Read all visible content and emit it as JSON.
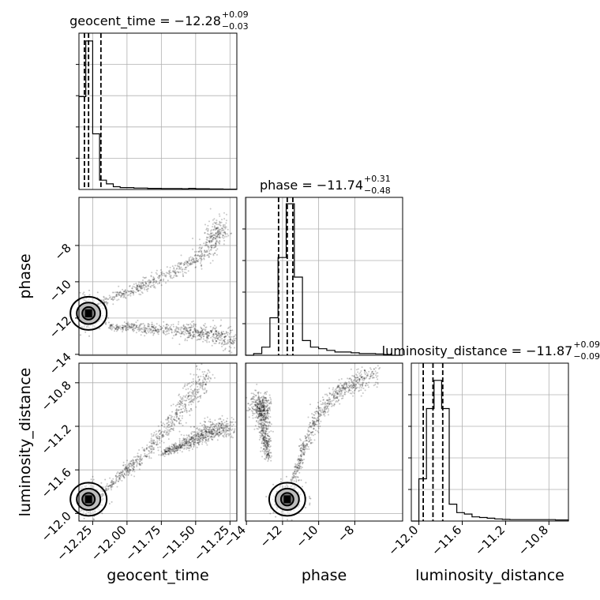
{
  "chart_data": {
    "type": "corner",
    "parameters": [
      "geocent_time",
      "phase",
      "luminosity_distance"
    ],
    "axis_labels": {
      "geocent_time": "geocent_time",
      "phase": "phase",
      "luminosity_distance": "luminosity_distance"
    },
    "titles": {
      "geocent_time": {
        "name": "geocent_time",
        "median": "−12.28",
        "plus": "+0.09",
        "minus": "−0.03"
      },
      "phase": {
        "name": "phase",
        "median": "−11.74",
        "plus": "+0.31",
        "minus": "−0.48"
      },
      "luminosity_distance": {
        "name": "luminosity_distance",
        "median": "−11.87",
        "plus": "+0.09",
        "minus": "−0.09"
      }
    },
    "ranges": {
      "geocent_time": [
        -12.35,
        -11.2
      ],
      "phase": [
        -14.05,
        -5.35
      ],
      "luminosity_distance": [
        -12.07,
        -10.62
      ]
    },
    "ticks": {
      "geocent_time": [
        -12.25,
        -12.0,
        -11.75,
        -11.5,
        -11.25
      ],
      "phase": [
        -14,
        -12,
        -10,
        -8
      ],
      "luminosity_distance": [
        -12.0,
        -11.6,
        -11.2,
        -10.8
      ]
    },
    "tick_labels": {
      "geocent_time": [
        "−12.25",
        "−12.00",
        "−11.75",
        "−11.50",
        "−11.25"
      ],
      "phase": [
        "−14",
        "−12",
        "−10",
        "−8"
      ],
      "luminosity_distance": [
        "−12.0",
        "−11.6",
        "−11.2",
        "−10.8"
      ]
    },
    "quantiles": {
      "geocent_time": [
        -12.31,
        -12.28,
        -12.19
      ],
      "phase": [
        -12.22,
        -11.74,
        -11.43
      ],
      "luminosity_distance": [
        -11.96,
        -11.87,
        -11.78
      ]
    },
    "histograms": {
      "geocent_time": {
        "edges": [
          -12.35,
          -12.3,
          -12.25,
          -12.2,
          -12.15,
          -12.1,
          -12.05,
          -12.0,
          -11.95,
          -11.9,
          -11.85,
          -11.8,
          -11.75,
          -11.7,
          -11.65,
          -11.6,
          -11.55,
          -11.5,
          -11.45,
          -11.4,
          -11.35,
          -11.3,
          -11.25,
          -11.2
        ],
        "counts": [
          1.0,
          1.6,
          0.6,
          0.1,
          0.06,
          0.03,
          0.02,
          0.02,
          0.015,
          0.015,
          0.012,
          0.012,
          0.01,
          0.01,
          0.01,
          0.008,
          0.012,
          0.008,
          0.008,
          0.005,
          0.005,
          0.003,
          0.003
        ],
        "ymax": 1.65
      },
      "phase": {
        "edges": [
          -14.05,
          -13.6,
          -13.15,
          -12.7,
          -12.25,
          -11.8,
          -11.35,
          -10.9,
          -10.45,
          -10.0,
          -9.55,
          -9.1,
          -8.65,
          -8.2,
          -7.75,
          -7.3,
          -6.85,
          -6.4,
          -5.95,
          -5.35
        ],
        "counts": [
          0.0,
          0.01,
          0.05,
          0.23,
          0.6,
          0.93,
          0.48,
          0.09,
          0.05,
          0.04,
          0.03,
          0.02,
          0.02,
          0.015,
          0.01,
          0.01,
          0.008,
          0.005,
          0.0
        ],
        "ymax": 0.95
      },
      "luminosity_distance": {
        "edges": [
          -12.07,
          -12.0,
          -11.93,
          -11.86,
          -11.79,
          -11.72,
          -11.65,
          -11.58,
          -11.51,
          -11.44,
          -11.37,
          -11.3,
          -11.23,
          -11.16,
          -11.09,
          -11.02,
          -10.95,
          -10.88,
          -10.81,
          -10.74,
          -10.62
        ],
        "counts": [
          0.0,
          0.3,
          0.8,
          1.0,
          0.8,
          0.12,
          0.06,
          0.05,
          0.03,
          0.025,
          0.02,
          0.015,
          0.012,
          0.01,
          0.01,
          0.01,
          0.01,
          0.01,
          0.01,
          0.008
        ],
        "ymax": 1.1
      }
    },
    "scatter_features": {
      "geocent_time_vs_phase": {
        "upper_branch": [
          [
            -12.2,
            -11.2
          ],
          [
            -12.0,
            -10.6
          ],
          [
            -11.75,
            -9.8
          ],
          [
            -11.5,
            -8.8
          ],
          [
            -11.35,
            -7.6
          ],
          [
            -11.33,
            -6.8
          ]
        ],
        "lower_branch": [
          [
            -12.15,
            -12.45
          ],
          [
            -11.9,
            -12.55
          ],
          [
            -11.6,
            -12.7
          ],
          [
            -11.4,
            -12.9
          ],
          [
            -11.2,
            -13.2
          ]
        ],
        "mode": [
          -12.28,
          -11.74
        ]
      },
      "geocent_time_vs_luminosity_distance": {
        "main_branch": [
          [
            -12.2,
            -11.85
          ],
          [
            -12.05,
            -11.65
          ],
          [
            -11.9,
            -11.5
          ],
          [
            -11.7,
            -11.2
          ],
          [
            -11.55,
            -10.95
          ],
          [
            -11.42,
            -10.72
          ]
        ],
        "secondary_branch": [
          [
            -11.75,
            -11.45
          ],
          [
            -11.55,
            -11.35
          ],
          [
            -11.4,
            -11.25
          ],
          [
            -11.25,
            -11.2
          ]
        ],
        "mode": [
          -12.28,
          -11.87
        ]
      },
      "phase_vs_luminosity_distance": {
        "left_branch": [
          [
            -12.8,
            -11.5
          ],
          [
            -13.1,
            -11.1
          ],
          [
            -13.3,
            -10.95
          ]
        ],
        "right_branch": [
          [
            -11.4,
            -11.7
          ],
          [
            -10.8,
            -11.4
          ],
          [
            -10.0,
            -11.1
          ],
          [
            -9.0,
            -10.9
          ],
          [
            -8.0,
            -10.8
          ],
          [
            -6.8,
            -10.7
          ]
        ],
        "mode": [
          -11.74,
          -11.87
        ]
      }
    }
  }
}
